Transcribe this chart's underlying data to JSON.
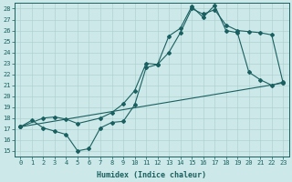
{
  "xlabel": "Humidex (Indice chaleur)",
  "xlim": [
    -0.5,
    23.5
  ],
  "ylim": [
    14.5,
    28.5
  ],
  "xticks": [
    0,
    1,
    2,
    3,
    4,
    5,
    6,
    7,
    8,
    9,
    10,
    11,
    12,
    13,
    14,
    15,
    16,
    17,
    18,
    19,
    20,
    21,
    22,
    23
  ],
  "yticks": [
    15,
    16,
    17,
    18,
    19,
    20,
    21,
    22,
    23,
    24,
    25,
    26,
    27,
    28
  ],
  "bg_color": "#cce8e8",
  "line_color": "#1a6060",
  "grid_color": "#aacece",
  "line1_x": [
    0,
    1,
    2,
    3,
    4,
    5,
    6,
    7,
    8,
    9,
    10,
    11,
    12,
    13,
    14,
    15,
    16,
    17,
    18,
    19,
    20,
    21,
    22,
    23
  ],
  "line1_y": [
    17.2,
    17.8,
    17.1,
    16.8,
    16.5,
    15.0,
    15.2,
    17.1,
    17.6,
    17.7,
    19.2,
    22.6,
    22.9,
    25.5,
    26.2,
    28.2,
    27.2,
    28.3,
    26.0,
    25.8,
    22.2,
    21.5,
    21.0,
    21.3
  ],
  "line2_x": [
    0,
    2,
    3,
    4,
    5,
    7,
    8,
    9,
    10,
    11,
    12,
    13,
    14,
    15,
    16,
    17,
    18,
    19,
    20,
    21,
    22,
    23
  ],
  "line2_y": [
    17.2,
    18.0,
    18.1,
    17.9,
    17.5,
    18.0,
    18.5,
    19.3,
    20.5,
    23.0,
    22.9,
    24.0,
    25.8,
    28.0,
    27.5,
    27.9,
    26.5,
    26.0,
    25.9,
    25.8,
    25.6,
    21.2
  ],
  "line3_x": [
    0,
    23
  ],
  "line3_y": [
    17.2,
    21.2
  ],
  "marker": "D",
  "markersize": 2,
  "linewidth": 0.8,
  "tick_fontsize": 5,
  "xlabel_fontsize": 6
}
